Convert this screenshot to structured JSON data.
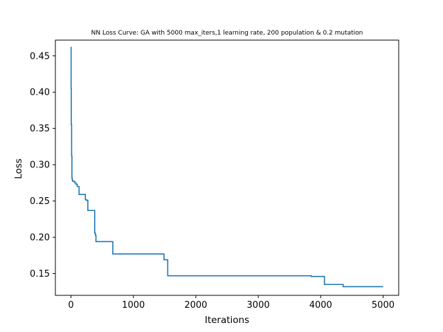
{
  "chart_data": {
    "type": "line",
    "title": "NN Loss Curve: GA with 5000 max_iters,1 learning rate, 200 population & 0.2 mutation",
    "xlabel": "Iterations",
    "ylabel": "Loss",
    "xlim": [
      -250,
      5250
    ],
    "ylim": [
      0.12,
      0.4717
    ],
    "xticks": [
      0,
      1000,
      2000,
      3000,
      4000,
      5000
    ],
    "xtick_labels": [
      "0",
      "1000",
      "2000",
      "3000",
      "4000",
      "5000"
    ],
    "yticks": [
      0.15,
      0.2,
      0.25,
      0.3,
      0.35,
      0.4,
      0.45
    ],
    "ytick_labels": [
      "0.15",
      "0.20",
      "0.25",
      "0.30",
      "0.35",
      "0.40",
      "0.45"
    ],
    "grid": false,
    "legend": null,
    "line_color": "#1f77b4",
    "series": [
      {
        "step": true,
        "x": [
          0,
          2,
          5,
          10,
          15,
          20,
          25,
          30,
          60,
          80,
          100,
          130,
          230,
          245,
          270,
          380,
          390,
          400,
          670,
          1490,
          1550,
          3850,
          4060,
          4360,
          5000
        ],
        "y": [
          0.462,
          0.405,
          0.355,
          0.312,
          0.282,
          0.279,
          0.278,
          0.277,
          0.275,
          0.273,
          0.27,
          0.259,
          0.252,
          0.251,
          0.237,
          0.206,
          0.203,
          0.194,
          0.177,
          0.169,
          0.147,
          0.146,
          0.135,
          0.132,
          0.132
        ]
      }
    ]
  }
}
